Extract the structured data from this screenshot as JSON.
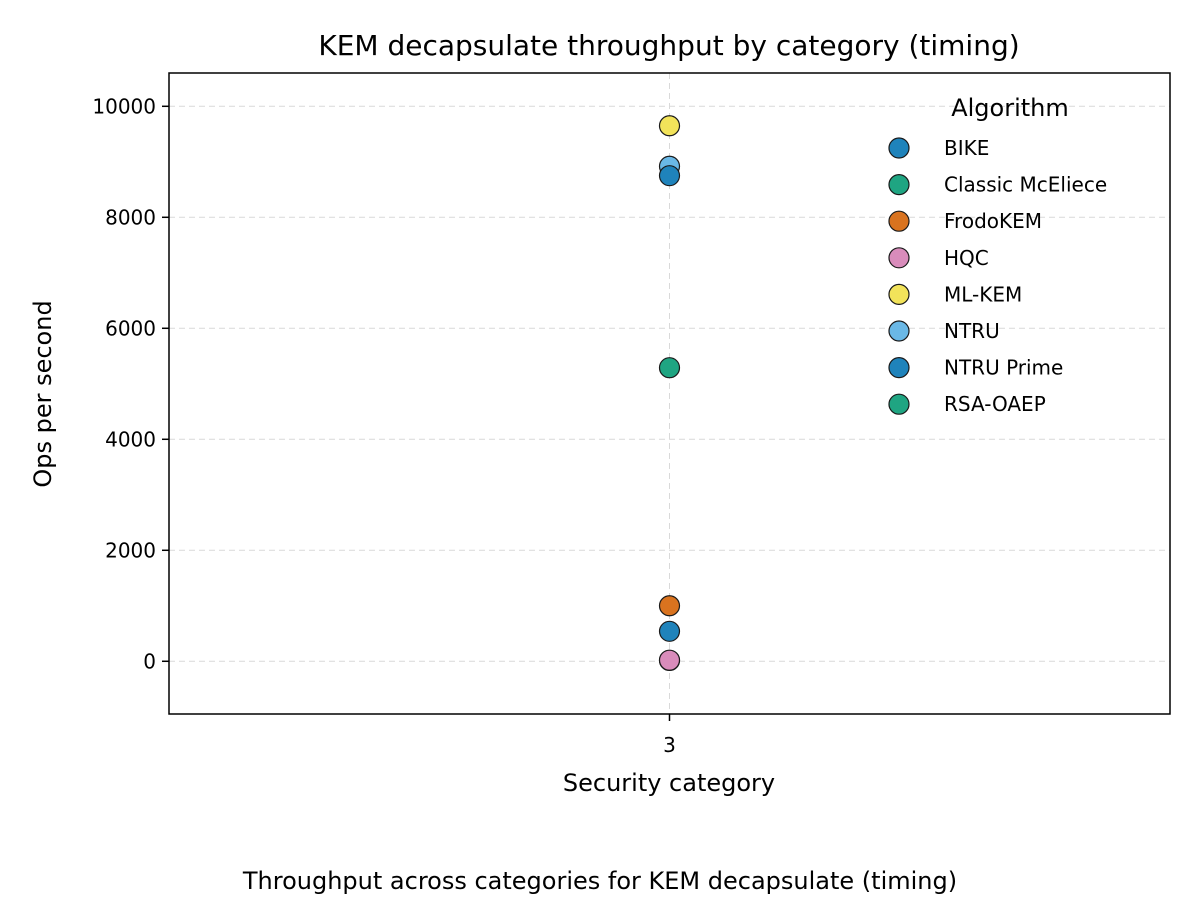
{
  "chart_data": {
    "type": "scatter",
    "title": "KEM decapsulate throughput by category (timing)",
    "xlabel": "Security category",
    "ylabel": "Ops per second",
    "caption": "Throughput across categories for KEM decapsulate (timing)",
    "x_categories": [
      "3"
    ],
    "ylim": [
      -950,
      10600
    ],
    "yticks": [
      0,
      2000,
      4000,
      6000,
      8000,
      10000
    ],
    "grid": true,
    "legend": {
      "title": "Algorithm",
      "position": "top-right"
    },
    "series": [
      {
        "name": "BIKE",
        "color": "#1f83bb",
        "points": [
          {
            "x": "3",
            "y": 540
          }
        ]
      },
      {
        "name": "Classic McEliece",
        "color": "#1fa582",
        "points": [
          {
            "x": "3",
            "y": 15
          }
        ]
      },
      {
        "name": "FrodoKEM",
        "color": "#d9731f",
        "points": [
          {
            "x": "3",
            "y": 1000
          }
        ]
      },
      {
        "name": "HQC",
        "color": "#d98cbb",
        "points": [
          {
            "x": "3",
            "y": 20
          }
        ]
      },
      {
        "name": "ML-KEM",
        "color": "#f2e35a",
        "points": [
          {
            "x": "3",
            "y": 9650
          }
        ]
      },
      {
        "name": "NTRU",
        "color": "#6ab8e6",
        "points": [
          {
            "x": "3",
            "y": 8920
          }
        ]
      },
      {
        "name": "NTRU Prime",
        "color": "#1f83bb",
        "points": [
          {
            "x": "3",
            "y": 8750
          }
        ]
      },
      {
        "name": "RSA-OAEP",
        "color": "#1fa582",
        "points": [
          {
            "x": "3",
            "y": 5290
          }
        ]
      }
    ]
  }
}
